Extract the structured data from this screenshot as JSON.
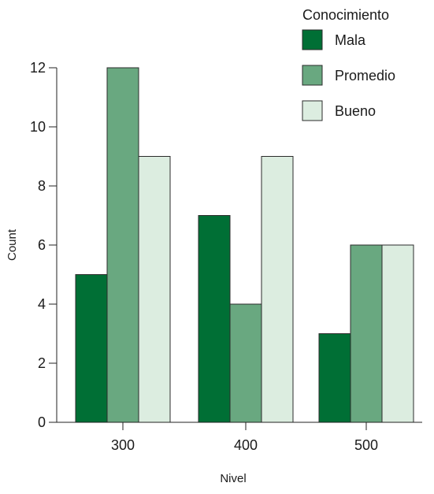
{
  "chart_data": {
    "type": "bar",
    "title": "",
    "xlabel": "Nivel",
    "ylabel": "Count",
    "categories": [
      "300",
      "400",
      "500"
    ],
    "ylim": [
      0,
      12
    ],
    "yticks": [
      "0",
      "2",
      "4",
      "6",
      "8",
      "10",
      "12"
    ],
    "grid": false,
    "legend": {
      "title": "Conocimiento",
      "placement": "top-right"
    },
    "series": [
      {
        "name": "Mala",
        "values": [
          5,
          7,
          3
        ],
        "color": "#006f35"
      },
      {
        "name": "Promedio",
        "values": [
          12,
          4,
          6
        ],
        "color": "#69a880"
      },
      {
        "name": "Bueno",
        "values": [
          9,
          9,
          6
        ],
        "color": "#dcede0"
      }
    ]
  }
}
